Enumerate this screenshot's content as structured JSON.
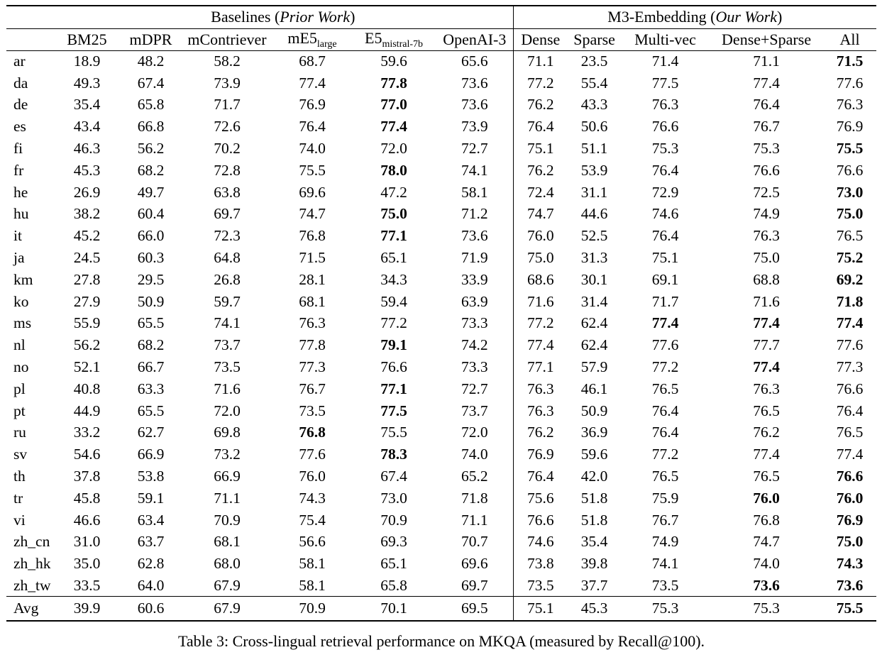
{
  "caption": "Table 3: Cross-lingual retrieval performance on MKQA (measured by Recall@100).",
  "table": {
    "groups": {
      "baselines": {
        "prefix": "Baselines (",
        "italic": "Prior Work",
        "suffix": ")"
      },
      "m3": {
        "prefix": "M3-Embedding (",
        "italic": "Our Work",
        "suffix": ")"
      }
    },
    "columns": [
      {
        "main": "BM25",
        "sub": ""
      },
      {
        "main": "mDPR",
        "sub": ""
      },
      {
        "main": "mContriever",
        "sub": ""
      },
      {
        "main": "mE5",
        "sub": "large"
      },
      {
        "main": "E5",
        "sub": "mistral-7b"
      },
      {
        "main": "OpenAI-3",
        "sub": ""
      },
      {
        "main": "Dense",
        "sub": ""
      },
      {
        "main": "Sparse",
        "sub": ""
      },
      {
        "main": "Multi-vec",
        "sub": ""
      },
      {
        "main": "Dense+Sparse",
        "sub": ""
      },
      {
        "main": "All",
        "sub": ""
      }
    ],
    "rows": [
      {
        "lang": "ar",
        "values": [
          "18.9",
          "48.2",
          "58.2",
          "68.7",
          "59.6",
          "65.6",
          "71.1",
          "23.5",
          "71.4",
          "71.1",
          "71.5"
        ],
        "bold": [
          10
        ]
      },
      {
        "lang": "da",
        "values": [
          "49.3",
          "67.4",
          "73.9",
          "77.4",
          "77.8",
          "73.6",
          "77.2",
          "55.4",
          "77.5",
          "77.4",
          "77.6"
        ],
        "bold": [
          4
        ]
      },
      {
        "lang": "de",
        "values": [
          "35.4",
          "65.8",
          "71.7",
          "76.9",
          "77.0",
          "73.6",
          "76.2",
          "43.3",
          "76.3",
          "76.4",
          "76.3"
        ],
        "bold": [
          4
        ]
      },
      {
        "lang": "es",
        "values": [
          "43.4",
          "66.8",
          "72.6",
          "76.4",
          "77.4",
          "73.9",
          "76.4",
          "50.6",
          "76.6",
          "76.7",
          "76.9"
        ],
        "bold": [
          4
        ]
      },
      {
        "lang": "fi",
        "values": [
          "46.3",
          "56.2",
          "70.2",
          "74.0",
          "72.0",
          "72.7",
          "75.1",
          "51.1",
          "75.3",
          "75.3",
          "75.5"
        ],
        "bold": [
          10
        ]
      },
      {
        "lang": "fr",
        "values": [
          "45.3",
          "68.2",
          "72.8",
          "75.5",
          "78.0",
          "74.1",
          "76.2",
          "53.9",
          "76.4",
          "76.6",
          "76.6"
        ],
        "bold": [
          4
        ]
      },
      {
        "lang": "he",
        "values": [
          "26.9",
          "49.7",
          "63.8",
          "69.6",
          "47.2",
          "58.1",
          "72.4",
          "31.1",
          "72.9",
          "72.5",
          "73.0"
        ],
        "bold": [
          10
        ]
      },
      {
        "lang": "hu",
        "values": [
          "38.2",
          "60.4",
          "69.7",
          "74.7",
          "75.0",
          "71.2",
          "74.7",
          "44.6",
          "74.6",
          "74.9",
          "75.0"
        ],
        "bold": [
          4,
          10
        ]
      },
      {
        "lang": "it",
        "values": [
          "45.2",
          "66.0",
          "72.3",
          "76.8",
          "77.1",
          "73.6",
          "76.0",
          "52.5",
          "76.4",
          "76.3",
          "76.5"
        ],
        "bold": [
          4
        ]
      },
      {
        "lang": "ja",
        "values": [
          "24.5",
          "60.3",
          "64.8",
          "71.5",
          "65.1",
          "71.9",
          "75.0",
          "31.3",
          "75.1",
          "75.0",
          "75.2"
        ],
        "bold": [
          10
        ]
      },
      {
        "lang": "km",
        "values": [
          "27.8",
          "29.5",
          "26.8",
          "28.1",
          "34.3",
          "33.9",
          "68.6",
          "30.1",
          "69.1",
          "68.8",
          "69.2"
        ],
        "bold": [
          10
        ]
      },
      {
        "lang": "ko",
        "values": [
          "27.9",
          "50.9",
          "59.7",
          "68.1",
          "59.4",
          "63.9",
          "71.6",
          "31.4",
          "71.7",
          "71.6",
          "71.8"
        ],
        "bold": [
          10
        ]
      },
      {
        "lang": "ms",
        "values": [
          "55.9",
          "65.5",
          "74.1",
          "76.3",
          "77.2",
          "73.3",
          "77.2",
          "62.4",
          "77.4",
          "77.4",
          "77.4"
        ],
        "bold": [
          8,
          9,
          10
        ]
      },
      {
        "lang": "nl",
        "values": [
          "56.2",
          "68.2",
          "73.7",
          "77.8",
          "79.1",
          "74.2",
          "77.4",
          "62.4",
          "77.6",
          "77.7",
          "77.6"
        ],
        "bold": [
          4
        ]
      },
      {
        "lang": "no",
        "values": [
          "52.1",
          "66.7",
          "73.5",
          "77.3",
          "76.6",
          "73.3",
          "77.1",
          "57.9",
          "77.2",
          "77.4",
          "77.3"
        ],
        "bold": [
          9
        ]
      },
      {
        "lang": "pl",
        "values": [
          "40.8",
          "63.3",
          "71.6",
          "76.7",
          "77.1",
          "72.7",
          "76.3",
          "46.1",
          "76.5",
          "76.3",
          "76.6"
        ],
        "bold": [
          4
        ]
      },
      {
        "lang": "pt",
        "values": [
          "44.9",
          "65.5",
          "72.0",
          "73.5",
          "77.5",
          "73.7",
          "76.3",
          "50.9",
          "76.4",
          "76.5",
          "76.4"
        ],
        "bold": [
          4
        ]
      },
      {
        "lang": "ru",
        "values": [
          "33.2",
          "62.7",
          "69.8",
          "76.8",
          "75.5",
          "72.0",
          "76.2",
          "36.9",
          "76.4",
          "76.2",
          "76.5"
        ],
        "bold": [
          3
        ]
      },
      {
        "lang": "sv",
        "values": [
          "54.6",
          "66.9",
          "73.2",
          "77.6",
          "78.3",
          "74.0",
          "76.9",
          "59.6",
          "77.2",
          "77.4",
          "77.4"
        ],
        "bold": [
          4
        ]
      },
      {
        "lang": "th",
        "values": [
          "37.8",
          "53.8",
          "66.9",
          "76.0",
          "67.4",
          "65.2",
          "76.4",
          "42.0",
          "76.5",
          "76.5",
          "76.6"
        ],
        "bold": [
          10
        ]
      },
      {
        "lang": "tr",
        "values": [
          "45.8",
          "59.1",
          "71.1",
          "74.3",
          "73.0",
          "71.8",
          "75.6",
          "51.8",
          "75.9",
          "76.0",
          "76.0"
        ],
        "bold": [
          9,
          10
        ]
      },
      {
        "lang": "vi",
        "values": [
          "46.6",
          "63.4",
          "70.9",
          "75.4",
          "70.9",
          "71.1",
          "76.6",
          "51.8",
          "76.7",
          "76.8",
          "76.9"
        ],
        "bold": [
          10
        ]
      },
      {
        "lang": "zh_cn",
        "values": [
          "31.0",
          "63.7",
          "68.1",
          "56.6",
          "69.3",
          "70.7",
          "74.6",
          "35.4",
          "74.9",
          "74.7",
          "75.0"
        ],
        "bold": [
          10
        ]
      },
      {
        "lang": "zh_hk",
        "values": [
          "35.0",
          "62.8",
          "68.0",
          "58.1",
          "65.1",
          "69.6",
          "73.8",
          "39.8",
          "74.1",
          "74.0",
          "74.3"
        ],
        "bold": [
          10
        ]
      },
      {
        "lang": "zh_tw",
        "values": [
          "33.5",
          "64.0",
          "67.9",
          "58.1",
          "65.8",
          "69.7",
          "73.5",
          "37.7",
          "73.5",
          "73.6",
          "73.6"
        ],
        "bold": [
          9,
          10
        ]
      }
    ],
    "avg_row": {
      "lang": "Avg",
      "values": [
        "39.9",
        "60.6",
        "67.9",
        "70.9",
        "70.1",
        "69.5",
        "75.1",
        "45.3",
        "75.3",
        "75.3",
        "75.5"
      ],
      "bold": [
        10
      ]
    }
  }
}
